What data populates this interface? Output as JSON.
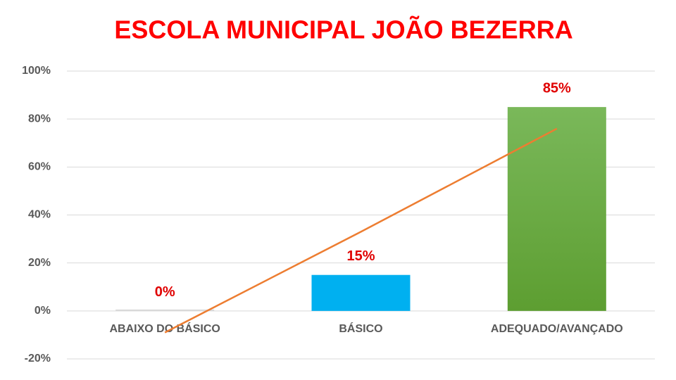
{
  "chart_data": {
    "type": "bar",
    "title": "ESCOLA MUNICIPAL JOÃO BEZERRA",
    "categories": [
      "ABAIXO DO BÁSICO",
      "BÁSICO",
      "ADEQUADO/AVANÇADO"
    ],
    "values": [
      0,
      15,
      85
    ],
    "value_labels": [
      "0%",
      "15%",
      "85%"
    ],
    "colors": [
      "#d9d9d9",
      "#00b0f0",
      "#6aab3f"
    ],
    "trendline": {
      "color": "#ed7d31",
      "values": [
        -9,
        33,
        76
      ]
    },
    "ylim": [
      -20,
      100
    ],
    "yticks": [
      {
        "value": -20,
        "label": "-20%"
      },
      {
        "value": 0,
        "label": "0%"
      },
      {
        "value": 20,
        "label": "20%"
      },
      {
        "value": 40,
        "label": "40%"
      },
      {
        "value": 60,
        "label": "60%"
      },
      {
        "value": 80,
        "label": "80%"
      },
      {
        "value": 100,
        "label": "100%"
      }
    ],
    "grid": true
  }
}
